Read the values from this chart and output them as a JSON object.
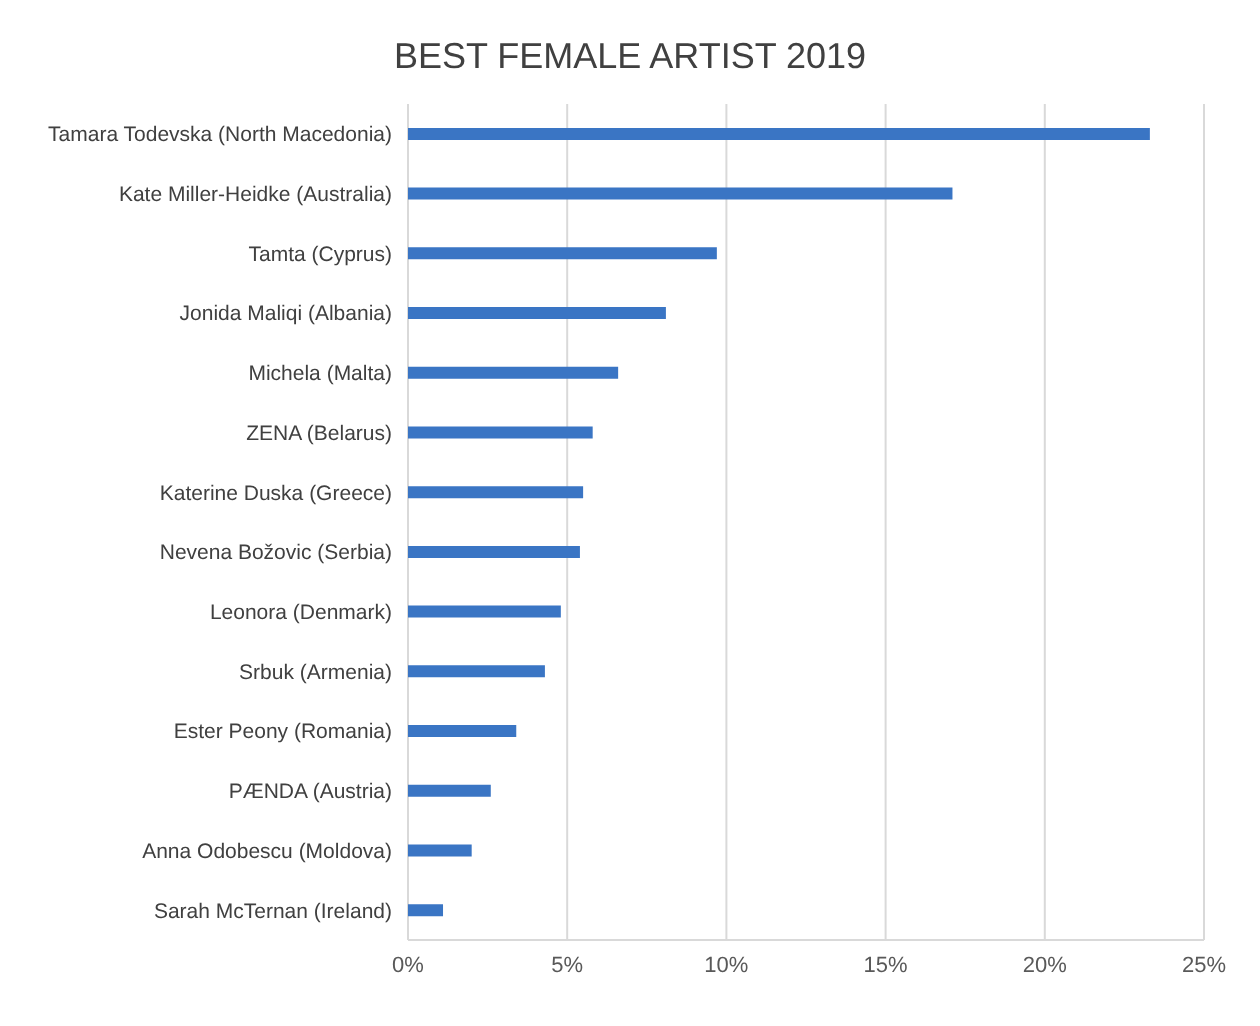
{
  "chart_data": {
    "type": "bar",
    "orientation": "horizontal",
    "title": "BEST FEMALE ARTIST 2019",
    "categories": [
      "Tamara Todevska (North Macedonia)",
      "Kate Miller-Heidke (Australia)",
      "Tamta (Cyprus)",
      "Jonida Maliqi (Albania)",
      "Michela (Malta)",
      "ZENA (Belarus)",
      "Katerine Duska (Greece)",
      "Nevena Božovic (Serbia)",
      "Leonora (Denmark)",
      "Srbuk (Armenia)",
      "Ester Peony (Romania)",
      "PÆNDA (Austria)",
      "Anna Odobescu (Moldova)",
      "Sarah McTernan (Ireland)"
    ],
    "values": [
      23.3,
      17.1,
      9.7,
      8.1,
      6.6,
      5.8,
      5.5,
      5.4,
      4.8,
      4.3,
      3.4,
      2.6,
      2.0,
      1.1
    ],
    "color": "#3a75c4",
    "xlim": [
      0,
      25
    ],
    "xticks": [
      {
        "value": 0,
        "label": "0%"
      },
      {
        "value": 5,
        "label": "5%"
      },
      {
        "value": 10,
        "label": "10%"
      },
      {
        "value": 15,
        "label": "15%"
      },
      {
        "value": 20,
        "label": "20%"
      },
      {
        "value": 25,
        "label": "25%"
      }
    ],
    "grid": "x"
  }
}
